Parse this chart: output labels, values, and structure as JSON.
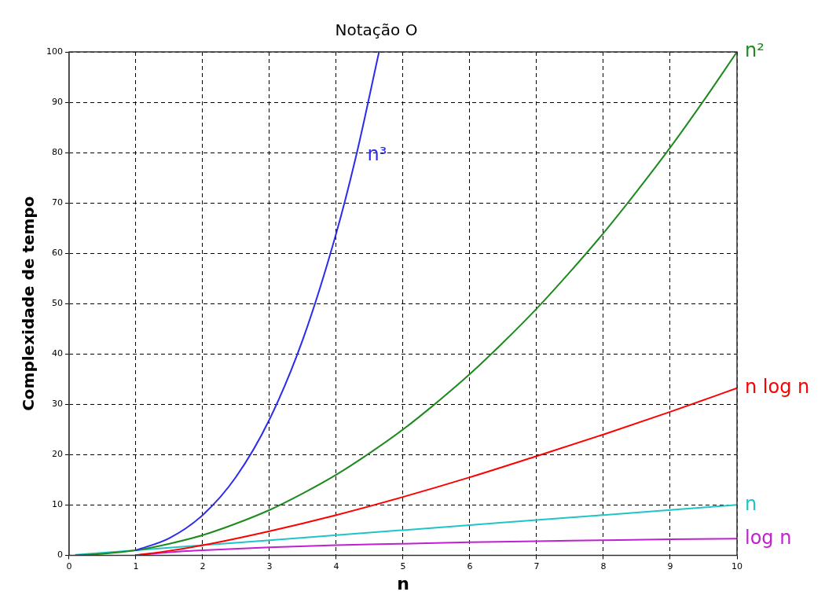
{
  "chart_data": {
    "type": "line",
    "title": "Notação O",
    "xlabel": "n",
    "ylabel": "Complexidade de tempo",
    "xlim": [
      0,
      10
    ],
    "ylim": [
      0,
      100
    ],
    "xticks": [
      0,
      1,
      2,
      3,
      4,
      5,
      6,
      7,
      8,
      9,
      10
    ],
    "yticks": [
      0,
      10,
      20,
      30,
      40,
      50,
      60,
      70,
      80,
      90,
      100
    ],
    "grid": true,
    "legend": false,
    "marker": "none",
    "line_style": "solid",
    "series": [
      {
        "name": "n³",
        "color": "#2b2bf0",
        "x": [
          1,
          1.5,
          2,
          2.5,
          3,
          3.5,
          4,
          4.3,
          4.64
        ],
        "values": [
          1,
          3.4,
          8,
          15.6,
          27,
          42.9,
          64,
          79.5,
          100
        ]
      },
      {
        "name": "n²",
        "color": "#1e8a1e",
        "x": [
          0.1,
          0.5,
          1,
          1.5,
          2,
          2.5,
          3,
          3.5,
          4,
          4.5,
          5,
          5.5,
          6,
          6.5,
          7,
          7.5,
          8,
          8.5,
          9,
          9.5,
          10
        ],
        "values": [
          0,
          0.3,
          1,
          2.3,
          4,
          6.3,
          9,
          12.3,
          16,
          20.3,
          25,
          30.3,
          36,
          42.3,
          49,
          56.3,
          64,
          72.3,
          81,
          90.3,
          100
        ]
      },
      {
        "name": "n log n",
        "color": "#ff0000",
        "x": [
          1,
          1.5,
          2,
          3,
          4,
          5,
          6,
          7,
          8,
          9,
          10
        ],
        "values": [
          0,
          0.9,
          2,
          4.8,
          8,
          11.6,
          15.5,
          19.7,
          24,
          28.5,
          33.2
        ]
      },
      {
        "name": "n",
        "color": "#20c4c8",
        "x": [
          0.1,
          1,
          2,
          3,
          4,
          5,
          6,
          7,
          8,
          9,
          10
        ],
        "values": [
          0.1,
          1,
          2,
          3,
          4,
          5,
          6,
          7,
          8,
          9,
          10
        ]
      },
      {
        "name": "log n",
        "color": "#c020d0",
        "x": [
          1,
          1.5,
          2,
          3,
          4,
          5,
          6,
          7,
          8,
          9,
          10
        ],
        "values": [
          0,
          0.6,
          1,
          1.6,
          2,
          2.3,
          2.6,
          2.8,
          3,
          3.2,
          3.3
        ]
      }
    ]
  }
}
